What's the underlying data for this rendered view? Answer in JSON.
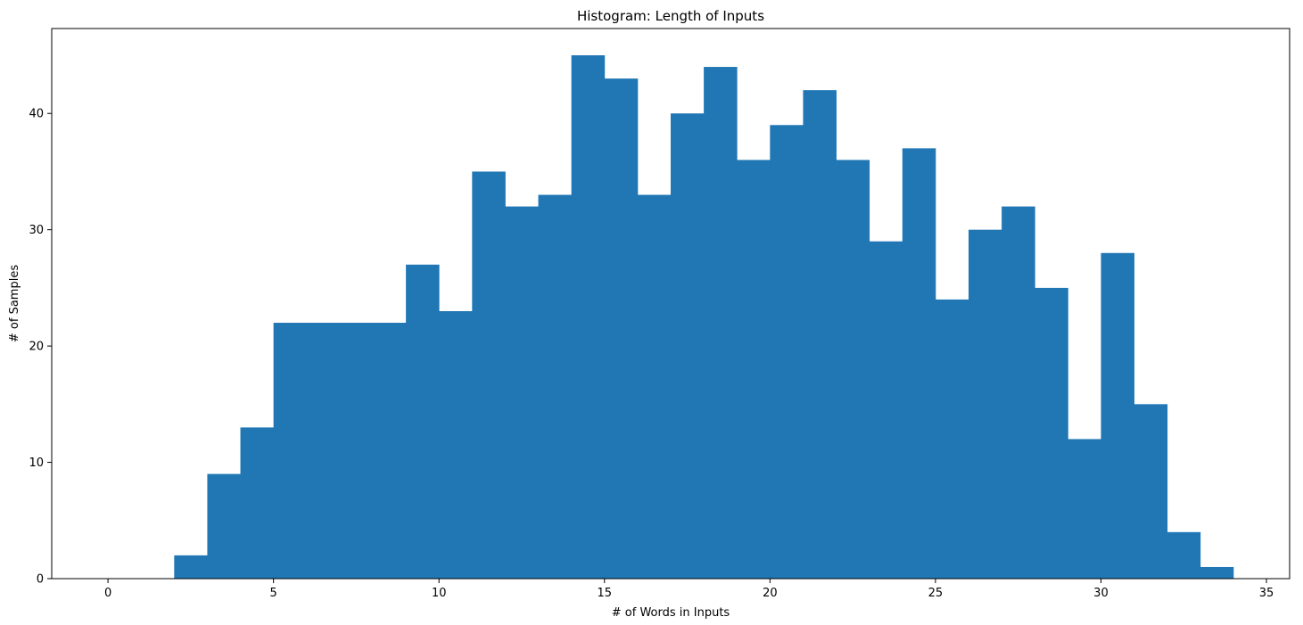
{
  "chart_data": {
    "type": "bar",
    "title": "Histogram: Length of Inputs",
    "xlabel": "# of Words in Inputs",
    "ylabel": "# of Samples",
    "bar_color": "#2077b4",
    "xlim": [
      -1.7,
      35.7
    ],
    "ylim": [
      0,
      47.3
    ],
    "xticks": [
      0,
      5,
      10,
      15,
      20,
      25,
      30,
      35
    ],
    "yticks": [
      0,
      10,
      20,
      30,
      40
    ],
    "bins": [
      {
        "x0": 0,
        "x1": 1,
        "count": 0
      },
      {
        "x0": 1,
        "x1": 2,
        "count": 0
      },
      {
        "x0": 2,
        "x1": 3,
        "count": 2
      },
      {
        "x0": 3,
        "x1": 4,
        "count": 9
      },
      {
        "x0": 4,
        "x1": 5,
        "count": 13
      },
      {
        "x0": 5,
        "x1": 6,
        "count": 22
      },
      {
        "x0": 6,
        "x1": 7,
        "count": 22
      },
      {
        "x0": 7,
        "x1": 8,
        "count": 22
      },
      {
        "x0": 8,
        "x1": 9,
        "count": 22
      },
      {
        "x0": 9,
        "x1": 10,
        "count": 27
      },
      {
        "x0": 10,
        "x1": 11,
        "count": 23
      },
      {
        "x0": 11,
        "x1": 12,
        "count": 35
      },
      {
        "x0": 12,
        "x1": 13,
        "count": 32
      },
      {
        "x0": 13,
        "x1": 14,
        "count": 33
      },
      {
        "x0": 14,
        "x1": 15,
        "count": 45
      },
      {
        "x0": 15,
        "x1": 16,
        "count": 43
      },
      {
        "x0": 16,
        "x1": 17,
        "count": 33
      },
      {
        "x0": 17,
        "x1": 18,
        "count": 40
      },
      {
        "x0": 18,
        "x1": 19,
        "count": 44
      },
      {
        "x0": 19,
        "x1": 20,
        "count": 36
      },
      {
        "x0": 20,
        "x1": 21,
        "count": 39
      },
      {
        "x0": 21,
        "x1": 22,
        "count": 42
      },
      {
        "x0": 22,
        "x1": 23,
        "count": 36
      },
      {
        "x0": 23,
        "x1": 24,
        "count": 29
      },
      {
        "x0": 24,
        "x1": 25,
        "count": 37
      },
      {
        "x0": 25,
        "x1": 26,
        "count": 24
      },
      {
        "x0": 26,
        "x1": 27,
        "count": 30
      },
      {
        "x0": 27,
        "x1": 28,
        "count": 32
      },
      {
        "x0": 28,
        "x1": 29,
        "count": 25
      },
      {
        "x0": 29,
        "x1": 30,
        "count": 12
      },
      {
        "x0": 30,
        "x1": 31,
        "count": 28
      },
      {
        "x0": 31,
        "x1": 32,
        "count": 15
      },
      {
        "x0": 32,
        "x1": 33,
        "count": 4
      },
      {
        "x0": 33,
        "x1": 34,
        "count": 1
      }
    ],
    "grid": false,
    "legend": "none"
  }
}
